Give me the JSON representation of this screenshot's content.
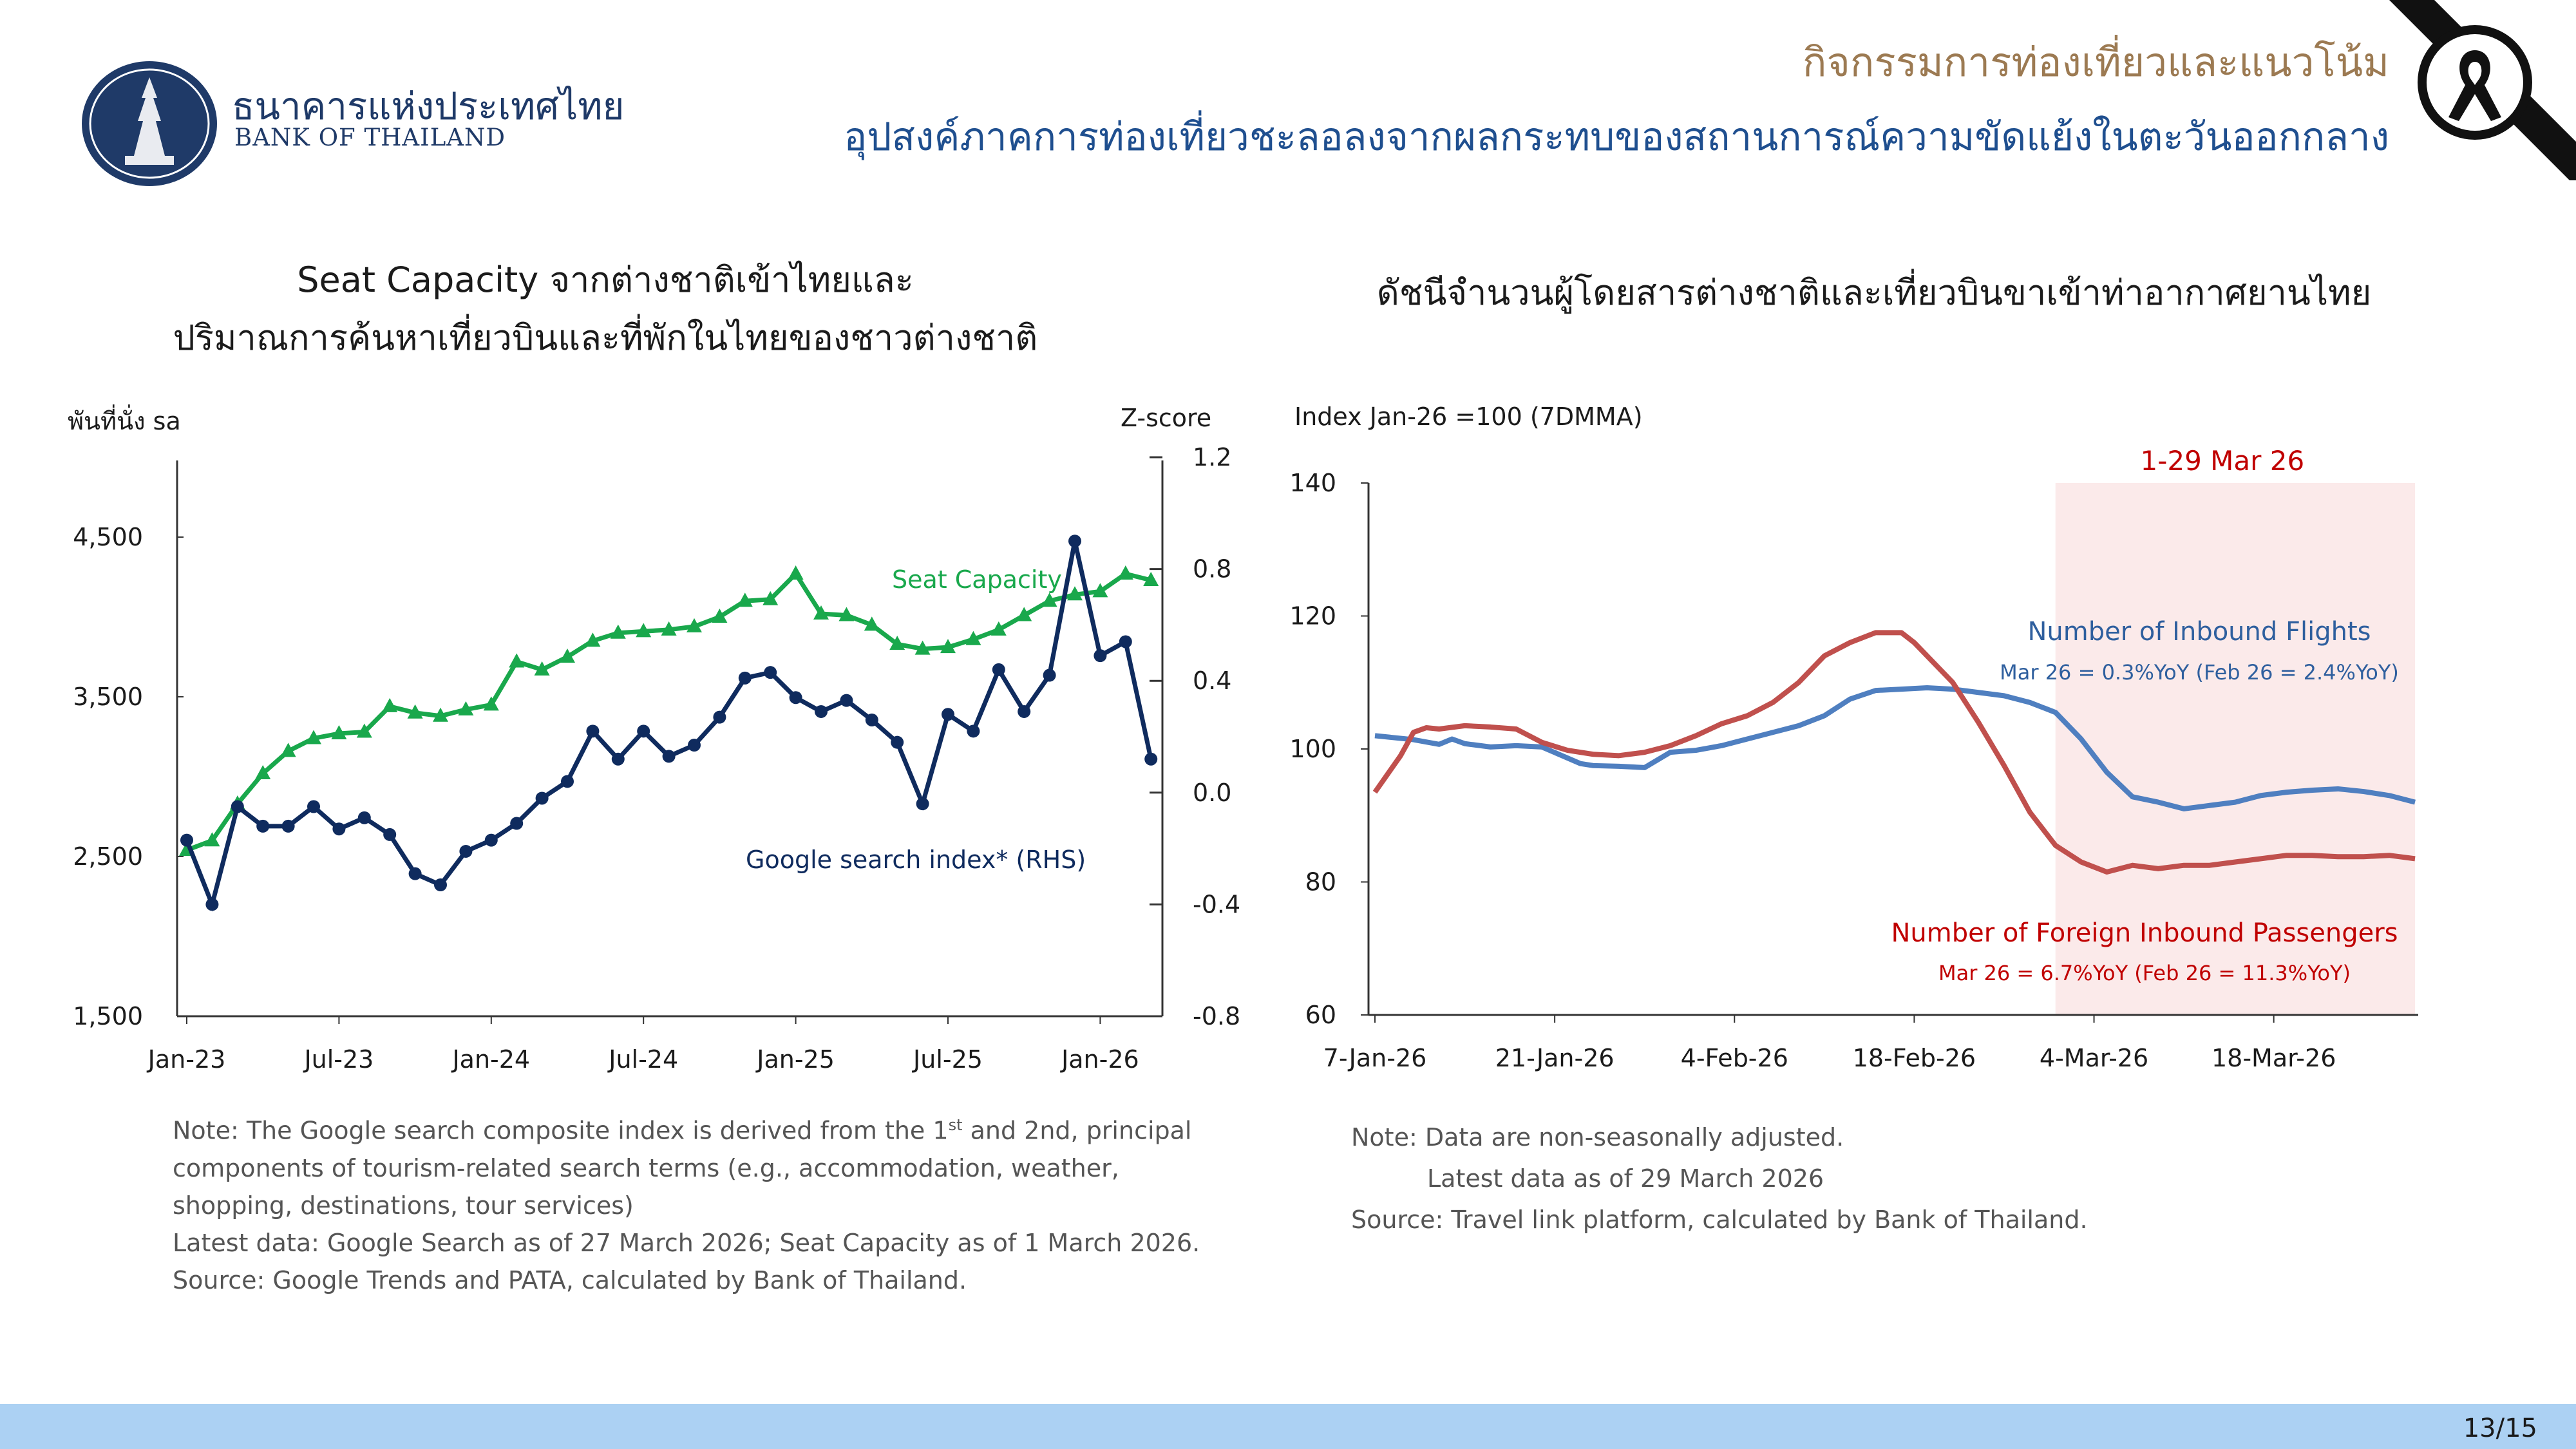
{
  "header": {
    "bank_name_th": "ธนาคารแห่งประเทศไทย",
    "bank_name_en": "BANK OF THAILAND",
    "section_title": "กิจกรรมการท่องเที่ยวและแนวโน้ม",
    "headline": "อุปสงค์ภาคการท่องเที่ยวชะลอลงจากผลกระทบของสถานการณ์ความขัดแย้งในตะวันออกกลาง"
  },
  "left_panel": {
    "title_line1": "Seat Capacity จากต่างชาติเข้าไทยและ",
    "title_line2": "ปริมาณการค้นหาเที่ยวบินและที่พักในไทยของชาวต่างชาติ",
    "note_line1": "Note: The Google search composite index is derived from the 1st and 2nd, principal",
    "note_line2": "components of tourism-related search terms (e.g., accommodation, weather,",
    "note_line3": "shopping,  destinations, tour services)",
    "note_line4": "Latest data: Google Search as of 27 March 2026; Seat Capacity as of 1 March 2026.",
    "note_line5": "Source: Google Trends and PATA, calculated by Bank of Thailand."
  },
  "right_panel": {
    "title": "ดัชนีจำนวนผู้โดยสารต่างชาติและเที่ยวบินขาเข้าท่าอากาศยานไทย",
    "note_line1": "Note: Data are non-seasonally adjusted.",
    "note_line2": "Latest data as of 29 March 2026",
    "note_line3": "Source: Travel link platform, calculated by Bank of Thailand."
  },
  "footer": {
    "page_number": "13/15"
  },
  "colors": {
    "green": "#19a84c",
    "navy": "#0f2b5e",
    "blue": "#4f7fc0",
    "red": "#c0504d",
    "shade": "#fbeaea"
  },
  "chart_data": [
    {
      "type": "line",
      "ylabel_left": "พันที่นั่ง sa",
      "ylabel_right": "Z-score",
      "ylim_left": [
        1500,
        5000
      ],
      "ylim_right": [
        -0.8,
        1.2
      ],
      "yticks_left": [
        1500,
        2500,
        3500,
        4500
      ],
      "yticks_left_labels": [
        "1,500",
        "2,500",
        "3,500",
        "4,500"
      ],
      "yticks_right": [
        -0.8,
        -0.4,
        0.0,
        0.4,
        0.8,
        1.2
      ],
      "yticks_right_labels": [
        "-0.8",
        "-0.4",
        "0.0",
        "0.4",
        "0.8",
        "1.2"
      ],
      "x_ticks": [
        "Jan-23",
        "Jul-23",
        "Jan-24",
        "Jul-24",
        "Jan-25",
        "Jul-25",
        "Jan-26"
      ],
      "series": [
        {
          "name": "Seat Capacity",
          "axis": "left",
          "start": "Jan-23",
          "values": [
            2540,
            2600,
            2830,
            3020,
            3160,
            3240,
            3270,
            3280,
            3440,
            3400,
            3380,
            3420,
            3450,
            3720,
            3670,
            3750,
            3850,
            3900,
            3910,
            3920,
            3940,
            4000,
            4100,
            4110,
            4270,
            4020,
            4010,
            3950,
            3830,
            3800,
            3810,
            3860,
            3920,
            4010,
            4100,
            4140,
            4160,
            4270,
            4230
          ]
        },
        {
          "name": "Google search index* (RHS)",
          "axis": "right",
          "start": "Jan-23",
          "values": [
            -0.17,
            -0.4,
            -0.05,
            -0.12,
            -0.12,
            -0.05,
            -0.13,
            -0.09,
            -0.15,
            -0.29,
            -0.33,
            -0.21,
            -0.17,
            -0.11,
            -0.02,
            0.04,
            0.22,
            0.12,
            0.22,
            0.13,
            0.17,
            0.27,
            0.41,
            0.43,
            0.34,
            0.29,
            0.33,
            0.26,
            0.18,
            -0.04,
            0.28,
            0.22,
            0.44,
            0.29,
            0.42,
            0.9,
            0.49,
            0.54,
            0.12
          ]
        }
      ]
    },
    {
      "type": "line",
      "ylabel": "Index Jan-26 =100  (7DMMA)",
      "ylim": [
        60,
        140
      ],
      "yticks": [
        60,
        80,
        100,
        120,
        140
      ],
      "x_ticks": [
        "7-Jan-26",
        "21-Jan-26",
        "4-Feb-26",
        "18-Feb-26",
        "4-Mar-26",
        "18-Mar-26"
      ],
      "x_range_days": [
        7,
        88
      ],
      "shaded_period": {
        "label": "1-29 Mar 26",
        "from_day": 60,
        "to_day": 88
      },
      "series": [
        {
          "name": "Number of Inbound Flights",
          "annotation": "Mar 26 = 0.3%YoY (Feb 26 = 2.4%YoY)",
          "x_days": [
            7,
            10,
            12,
            13,
            14,
            16,
            18,
            20,
            23,
            24,
            26,
            28,
            30,
            32,
            34,
            36,
            38,
            40,
            42,
            44,
            46,
            48,
            50,
            52,
            54,
            56,
            58,
            60,
            62,
            64,
            66,
            68,
            70,
            72,
            74,
            76,
            78,
            80,
            82,
            84,
            86,
            88
          ],
          "values": [
            102.0,
            101.4,
            100.7,
            101.5,
            100.8,
            100.3,
            100.5,
            100.3,
            97.8,
            97.5,
            97.4,
            97.2,
            99.5,
            99.8,
            100.5,
            101.5,
            102.5,
            103.5,
            105.0,
            107.5,
            108.8,
            109.0,
            109.2,
            109.0,
            108.5,
            108.0,
            107.0,
            105.5,
            101.5,
            96.5,
            92.8,
            92.0,
            91.0,
            91.5,
            92.0,
            93.0,
            93.5,
            93.8,
            94.0,
            93.6,
            93.0,
            92.0
          ]
        },
        {
          "name": "Number of Foreign Inbound Passengers",
          "annotation": "Mar 26 = 6.7%YoY (Feb 26 = 11.3%YoY)",
          "x_days": [
            7,
            9,
            10,
            11,
            12,
            14,
            16,
            18,
            20,
            22,
            24,
            26,
            28,
            30,
            32,
            34,
            36,
            38,
            40,
            42,
            44,
            46,
            48,
            49,
            50,
            52,
            54,
            56,
            58,
            60,
            62,
            64,
            66,
            68,
            70,
            72,
            74,
            76,
            78,
            80,
            82,
            84,
            86,
            88
          ],
          "values": [
            93.5,
            99.0,
            102.5,
            103.2,
            103.0,
            103.5,
            103.3,
            103.0,
            101.0,
            99.8,
            99.2,
            99.0,
            99.5,
            100.5,
            102.0,
            103.8,
            105.0,
            107.0,
            110.0,
            114.0,
            116.0,
            117.5,
            117.5,
            116.0,
            114.0,
            110.0,
            104.0,
            97.5,
            90.5,
            85.5,
            83.0,
            81.5,
            82.5,
            82.0,
            82.5,
            82.5,
            83.0,
            83.5,
            84.0,
            84.0,
            83.8,
            83.8,
            84.0,
            83.5
          ]
        }
      ]
    }
  ]
}
